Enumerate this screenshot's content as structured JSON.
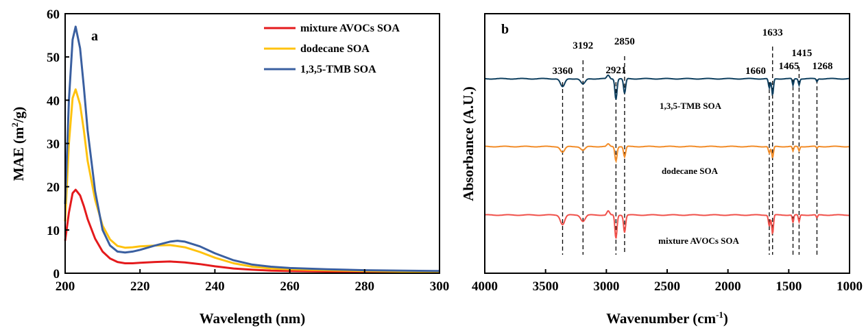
{
  "chart_data": [
    {
      "panel": "a",
      "type": "line",
      "xlabel": "Wavelength (nm)",
      "ylabel": "MAE (m2/g)",
      "xlim": [
        200,
        300
      ],
      "ylim": [
        0,
        60
      ],
      "xticks": [
        200,
        220,
        240,
        260,
        280,
        300
      ],
      "yticks": [
        0,
        10,
        20,
        30,
        40,
        50,
        60
      ],
      "legend_position": "top-right",
      "series": [
        {
          "name": "mixture AVOCs SOA",
          "color": "#e41a1c",
          "x": [
            200,
            201,
            202,
            202.8,
            204,
            205,
            206,
            208,
            210,
            212,
            214,
            216,
            218,
            220,
            224,
            228,
            232,
            236,
            240,
            245,
            250,
            255,
            260,
            270,
            280,
            290,
            300
          ],
          "y": [
            7.5,
            14,
            18.5,
            19.3,
            18,
            15.5,
            12.5,
            8,
            5,
            3.4,
            2.6,
            2.3,
            2.3,
            2.4,
            2.6,
            2.7,
            2.5,
            2.1,
            1.6,
            1.1,
            0.8,
            0.6,
            0.5,
            0.4,
            0.3,
            0.25,
            0.2
          ]
        },
        {
          "name": "dodecane SOA",
          "color": "#ffc20e",
          "x": [
            200,
            201,
            202,
            202.8,
            204,
            205,
            206,
            208,
            210,
            212,
            214,
            216,
            218,
            220,
            224,
            228,
            232,
            236,
            240,
            245,
            250,
            255,
            260,
            270,
            280,
            290,
            300
          ],
          "y": [
            12,
            30,
            40.5,
            42.5,
            39,
            33,
            26,
            17,
            11,
            7.8,
            6.3,
            5.9,
            6.0,
            6.2,
            6.4,
            6.5,
            6.0,
            4.9,
            3.6,
            2.3,
            1.5,
            1.1,
            0.9,
            0.7,
            0.5,
            0.4,
            0.35
          ]
        },
        {
          "name": "1,3,5-TMB SOA",
          "color": "#3a5fa0",
          "x": [
            200,
            201,
            202,
            202.8,
            204,
            205,
            206,
            208,
            210,
            212,
            214,
            216,
            218,
            220,
            224,
            228,
            230,
            232,
            236,
            240,
            245,
            250,
            255,
            260,
            270,
            280,
            290,
            300
          ],
          "y": [
            16,
            40,
            54,
            57,
            52,
            43,
            33,
            19,
            10,
            6.4,
            5.0,
            4.8,
            5.0,
            5.4,
            6.4,
            7.3,
            7.5,
            7.3,
            6.2,
            4.6,
            3.0,
            2.0,
            1.5,
            1.2,
            0.9,
            0.7,
            0.6,
            0.5
          ]
        }
      ]
    },
    {
      "panel": "b",
      "type": "line",
      "xlabel": "Wavenumber (cm-1)",
      "ylabel": "Absorbance (A.U.)",
      "xlim": [
        4000,
        1000
      ],
      "x_reversed": true,
      "xticks": [
        4000,
        3500,
        3000,
        2500,
        2000,
        1500,
        1000
      ],
      "grid": false,
      "peak_annotations": [
        3360,
        3192,
        2921,
        2850,
        1660,
        1633,
        1465,
        1415,
        1268
      ],
      "series": [
        {
          "name": "1,3,5-TMB SOA",
          "color": "#0d3e5e",
          "offset": 2
        },
        {
          "name": "dodecane SOA",
          "color": "#f28c28",
          "offset": 1
        },
        {
          "name": "mixture AVOCs SOA",
          "color": "#f0504a",
          "offset": 0
        }
      ]
    }
  ]
}
